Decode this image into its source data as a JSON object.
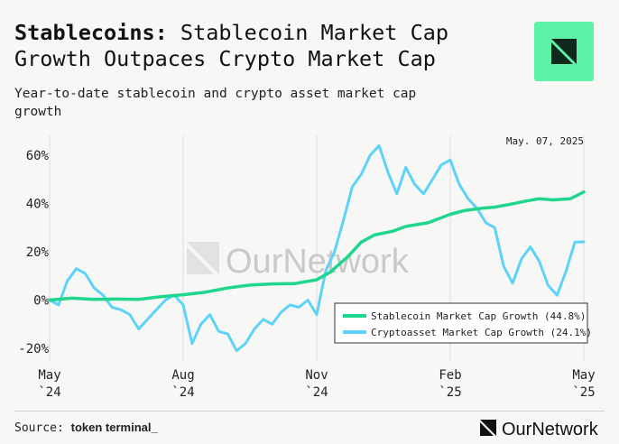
{
  "header": {
    "title_bold": "Stablecoins:",
    "title_rest": " Stablecoin Market Cap Growth Outpaces Crypto Market Cap",
    "subtitle": "Year-to-date stablecoin and crypto asset market cap growth"
  },
  "footer": {
    "source_label": "Source: ",
    "source_name": "token terminal_",
    "brand_name": "OurNetwork"
  },
  "watermark": "OurNetwork",
  "colors": {
    "stablecoin": "#1ed68c",
    "crypto": "#5ed2f7",
    "badge": "#5ef2a9"
  },
  "chart_data": {
    "type": "line",
    "date_annotation": "May. 07, 2025",
    "y_unit": "%",
    "ylim": [
      -25,
      65
    ],
    "y_ticks": [
      {
        "value": 60,
        "label": "60%"
      },
      {
        "value": 40,
        "label": "40%"
      },
      {
        "value": 20,
        "label": "20%"
      },
      {
        "value": 0,
        "label": "0%"
      },
      {
        "value": -20,
        "label": "-20%"
      }
    ],
    "x_ticks": [
      {
        "month": 0,
        "line1": "May",
        "line2": "`24"
      },
      {
        "month": 3,
        "line1": "Aug",
        "line2": "`24"
      },
      {
        "month": 6,
        "line1": "Nov",
        "line2": "`24"
      },
      {
        "month": 9,
        "line1": "Feb",
        "line2": "`25"
      },
      {
        "month": 12,
        "line1": "May",
        "line2": "`25"
      }
    ],
    "legend_position": "bottom-right",
    "series": [
      {
        "name": "Stablecoin Market Cap Growth (44.8%)",
        "color": "#1ed68c",
        "points": [
          [
            0,
            0
          ],
          [
            0.5,
            0.8
          ],
          [
            1,
            0.3
          ],
          [
            1.5,
            0.4
          ],
          [
            2,
            0.3
          ],
          [
            2.5,
            1.4
          ],
          [
            3,
            2.2
          ],
          [
            3.5,
            3.3
          ],
          [
            4,
            5
          ],
          [
            4.5,
            6.2
          ],
          [
            5,
            6.7
          ],
          [
            5.5,
            6.8
          ],
          [
            6,
            8.4
          ],
          [
            6.3,
            11.5
          ],
          [
            6.7,
            18
          ],
          [
            7,
            24
          ],
          [
            7.3,
            27
          ],
          [
            7.7,
            28.5
          ],
          [
            8,
            30.5
          ],
          [
            8.5,
            32
          ],
          [
            9,
            35.5
          ],
          [
            9.3,
            37
          ],
          [
            9.7,
            38
          ],
          [
            10,
            38.5
          ],
          [
            10.3,
            39.5
          ],
          [
            10.7,
            41
          ],
          [
            11,
            42
          ],
          [
            11.3,
            41.5
          ],
          [
            11.7,
            42
          ],
          [
            12,
            44.8
          ]
        ]
      },
      {
        "name": "Cryptoasset Market Cap Growth (24.1%)",
        "color": "#5ed2f7",
        "points": [
          [
            0,
            0
          ],
          [
            0.2,
            -2
          ],
          [
            0.4,
            8
          ],
          [
            0.6,
            13
          ],
          [
            0.8,
            11
          ],
          [
            1,
            5
          ],
          [
            1.2,
            2
          ],
          [
            1.4,
            -3
          ],
          [
            1.6,
            -4
          ],
          [
            1.8,
            -6
          ],
          [
            2,
            -12
          ],
          [
            2.2,
            -8
          ],
          [
            2.4,
            -4
          ],
          [
            2.6,
            0
          ],
          [
            2.8,
            2
          ],
          [
            3,
            -2
          ],
          [
            3.2,
            -18
          ],
          [
            3.4,
            -10
          ],
          [
            3.6,
            -6
          ],
          [
            3.8,
            -13
          ],
          [
            4,
            -14
          ],
          [
            4.2,
            -21
          ],
          [
            4.4,
            -18
          ],
          [
            4.6,
            -12
          ],
          [
            4.8,
            -8
          ],
          [
            5,
            -10
          ],
          [
            5.2,
            -5
          ],
          [
            5.4,
            -2
          ],
          [
            5.6,
            -3
          ],
          [
            5.8,
            0
          ],
          [
            6,
            -6
          ],
          [
            6.2,
            12
          ],
          [
            6.4,
            20
          ],
          [
            6.6,
            33
          ],
          [
            6.8,
            47
          ],
          [
            7,
            52
          ],
          [
            7.2,
            60
          ],
          [
            7.4,
            64
          ],
          [
            7.6,
            53
          ],
          [
            7.8,
            44
          ],
          [
            8,
            55
          ],
          [
            8.2,
            48
          ],
          [
            8.4,
            44
          ],
          [
            8.6,
            50
          ],
          [
            8.8,
            56
          ],
          [
            9,
            58
          ],
          [
            9.2,
            48
          ],
          [
            9.4,
            42
          ],
          [
            9.6,
            38
          ],
          [
            9.8,
            32
          ],
          [
            10,
            30
          ],
          [
            10.2,
            14
          ],
          [
            10.4,
            7
          ],
          [
            10.6,
            17
          ],
          [
            10.8,
            22
          ],
          [
            11,
            16
          ],
          [
            11.2,
            6
          ],
          [
            11.4,
            2
          ],
          [
            11.6,
            12
          ],
          [
            11.8,
            24
          ],
          [
            12,
            24.1
          ]
        ]
      }
    ]
  }
}
